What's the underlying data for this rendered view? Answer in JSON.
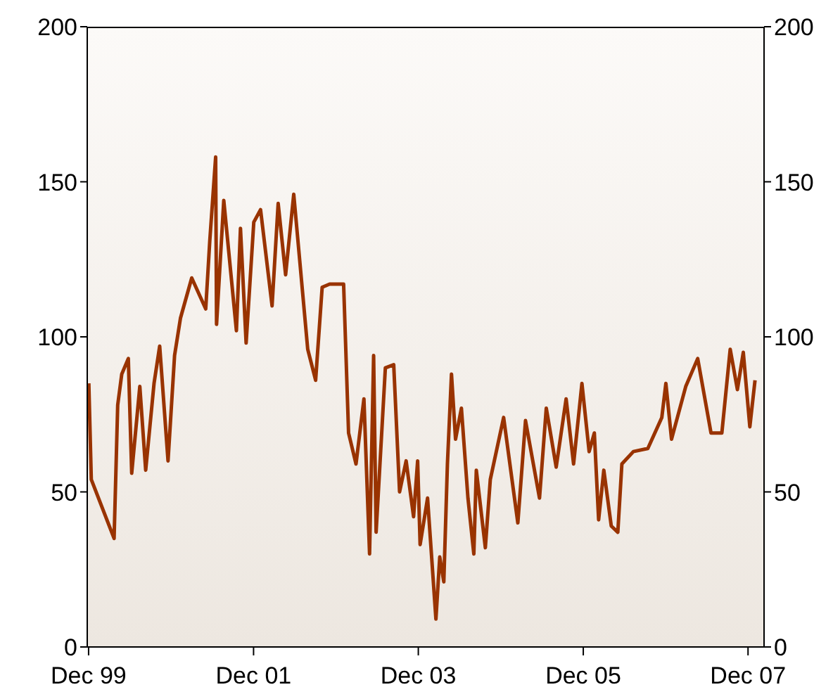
{
  "chart_data": {
    "type": "line",
    "x": [
      "1999-12-02",
      "1999-12-13",
      "2000-03-23",
      "2000-04-08",
      "2000-04-26",
      "2000-05-25",
      "2000-06-09",
      "2000-07-15",
      "2000-08-10",
      "2000-09-16",
      "2000-10-11",
      "2000-11-17",
      "2000-12-16",
      "2001-01-11",
      "2001-03-02",
      "2001-05-03",
      "2001-05-21",
      "2001-06-16",
      "2001-06-20",
      "2001-07-22",
      "2001-09-16",
      "2001-10-04",
      "2001-10-29",
      "2001-12-02",
      "2002-01-01",
      "2002-02-21",
      "2002-03-20",
      "2002-04-22",
      "2002-05-28",
      "2002-07-29",
      "2002-09-02",
      "2002-10-01",
      "2002-11-03",
      "2003-01-04",
      "2003-01-26",
      "2003-02-28",
      "2003-04-04",
      "2003-04-29",
      "2003-05-17",
      "2003-05-28",
      "2003-07-08",
      "2003-08-14",
      "2003-09-09",
      "2003-10-08",
      "2003-11-10",
      "2003-11-28",
      "2003-12-09",
      "2004-01-11",
      "2004-02-17",
      "2004-03-05",
      "2004-03-23",
      "2004-04-08",
      "2004-04-26",
      "2004-05-14",
      "2004-06-09",
      "2004-07-08",
      "2004-08-03",
      "2004-08-14",
      "2004-09-23",
      "2004-10-15",
      "2004-12-13",
      "2005-02-14",
      "2005-03-20",
      "2005-05-21",
      "2005-06-20",
      "2005-07-04",
      "2005-08-03",
      "2005-09-16",
      "2005-10-19",
      "2005-11-25",
      "2005-12-27",
      "2006-01-19",
      "2006-02-07",
      "2006-03-02",
      "2006-04-04",
      "2006-05-03",
      "2006-05-21",
      "2006-07-11",
      "2006-09-13",
      "2006-11-14",
      "2006-12-02",
      "2006-12-27",
      "2007-02-28",
      "2007-04-22",
      "2007-06-20",
      "2007-08-07",
      "2007-09-13",
      "2007-10-15",
      "2007-11-10",
      "2007-12-09",
      "2008-01-01"
    ],
    "series": [
      {
        "color": "#993300",
        "values": [
          85,
          54,
          35,
          78,
          88,
          93,
          56,
          84,
          57,
          85,
          97,
          60,
          94,
          106,
          119,
          109,
          131,
          158,
          104,
          144,
          102,
          135,
          98,
          137,
          141,
          110,
          143,
          120,
          146,
          96,
          86,
          116,
          117,
          117,
          69,
          59,
          80,
          30,
          94,
          37,
          90,
          91,
          50,
          60,
          42,
          60,
          33,
          48,
          9,
          29,
          21,
          59,
          88,
          67,
          77,
          48,
          30,
          57,
          32,
          54,
          74,
          40,
          73,
          48,
          77,
          71,
          58,
          80,
          59,
          85,
          63,
          69,
          41,
          57,
          39,
          37,
          59,
          63,
          64,
          74,
          85,
          67,
          84,
          93,
          69,
          69,
          96,
          83,
          95,
          71,
          86
        ]
      }
    ],
    "xlim": [
      "1999-11-25",
      "2008-02-10"
    ],
    "xticks": [
      {
        "value": "1999-12",
        "label": "Dec 99"
      },
      {
        "value": "2001-12",
        "label": "Dec 01"
      },
      {
        "value": "2003-12",
        "label": "Dec 03"
      },
      {
        "value": "2005-12",
        "label": "Dec 05"
      },
      {
        "value": "2007-12",
        "label": "Dec 07"
      }
    ],
    "ylim": [
      0,
      200
    ],
    "yticks": [
      0,
      50,
      100,
      150,
      200
    ],
    "y2lim": [
      0,
      200
    ],
    "y2ticks": [
      0,
      50,
      100,
      150,
      200
    ],
    "marker": "none",
    "line_style": "solid",
    "grid": false,
    "legend": false
  }
}
